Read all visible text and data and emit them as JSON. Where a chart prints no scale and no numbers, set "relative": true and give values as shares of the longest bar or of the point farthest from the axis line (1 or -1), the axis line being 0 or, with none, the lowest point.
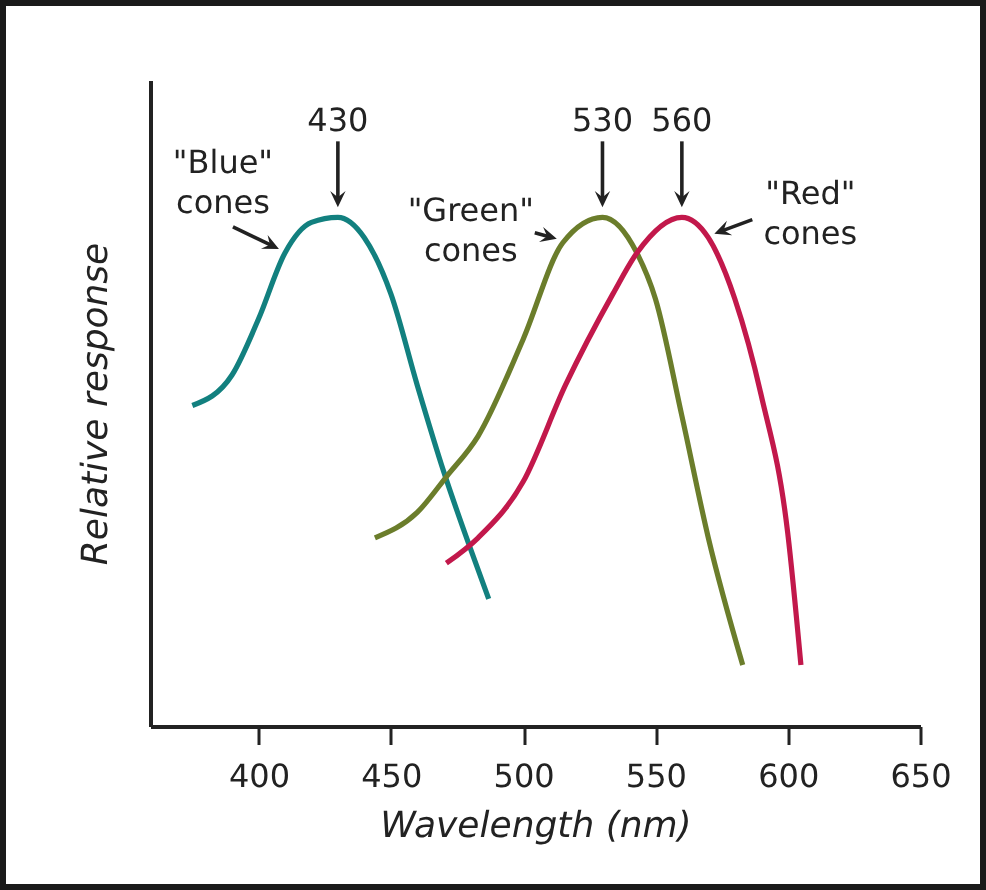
{
  "chart_data": {
    "type": "line",
    "relative": true,
    "xlabel": "Wavelength (nm)",
    "ylabel": "Relative response",
    "xlim": [
      359,
      650
    ],
    "xticks": [
      400,
      450,
      500,
      550,
      600,
      650
    ],
    "grid": false,
    "legend": false,
    "marker": "none",
    "line_style": "solid",
    "series": [
      {
        "name": "\"Blue\" cones",
        "color": "#12807f",
        "x": [
          375,
          390,
          400,
          410,
          420,
          430,
          440,
          450,
          460,
          470,
          480,
          487
        ],
        "values": [
          0.63,
          0.69,
          0.8,
          0.93,
          0.99,
          1,
          0.96,
          0.85,
          0.67,
          0.5,
          0.35,
          0.25
        ]
      },
      {
        "name": "\"Green\" cones",
        "color": "#6b7d2b",
        "x": [
          444,
          460,
          471,
          483,
          500,
          515,
          530,
          543,
          550,
          560,
          570,
          583
        ],
        "values": [
          0.37,
          0.42,
          0.49,
          0.57,
          0.76,
          0.95,
          1,
          0.93,
          0.84,
          0.61,
          0.37,
          0.12
        ]
      },
      {
        "name": "\"Red\" cones",
        "color": "#c2184b",
        "x": [
          471,
          483,
          500,
          516,
          534,
          543,
          560,
          570,
          580,
          590,
          600,
          605
        ],
        "values": [
          0.32,
          0.37,
          0.48,
          0.67,
          0.85,
          0.93,
          1,
          0.96,
          0.84,
          0.65,
          0.38,
          0.12
        ]
      }
    ],
    "annotations": [
      {
        "text": "430",
        "x": 430,
        "y": 1
      },
      {
        "text": "530",
        "x": 530,
        "y": 1
      },
      {
        "text": "560",
        "x": 560,
        "y": 1
      }
    ]
  }
}
